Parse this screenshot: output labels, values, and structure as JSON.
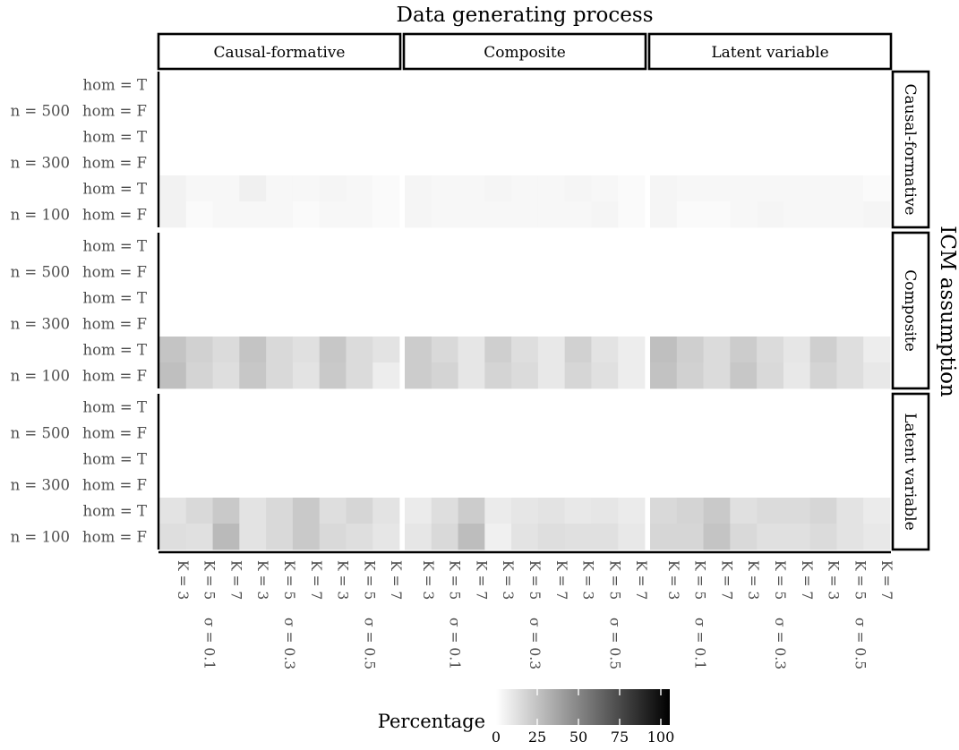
{
  "chart_data": {
    "type": "heatmap",
    "title": "Data generating process",
    "right_title": "ICM assumption",
    "columns": [
      "Causal-formative",
      "Composite",
      "Latent variable"
    ],
    "rows": [
      "Causal-formative",
      "Composite",
      "Latent variable"
    ],
    "y_labels": [
      {
        "n": "",
        "hom": "hom = T"
      },
      {
        "n": "n = 500",
        "hom": "hom = F"
      },
      {
        "n": "",
        "hom": "hom = T"
      },
      {
        "n": "n = 300",
        "hom": "hom = F"
      },
      {
        "n": "",
        "hom": "hom = T"
      },
      {
        "n": "n = 100",
        "hom": "hom = F"
      }
    ],
    "x_k_labels": [
      "K = 3",
      "K = 5",
      "K = 7",
      "K = 3",
      "K = 5",
      "K = 7",
      "K = 3",
      "K = 5",
      "K = 7"
    ],
    "x_sigma_labels": [
      "σ = 0.1",
      "σ = 0.3",
      "σ = 0.5"
    ],
    "legend": {
      "title": "Percentage",
      "ticks": [
        "0",
        "25",
        "50",
        "75",
        "100"
      ],
      "range": [
        0,
        100
      ],
      "low_color": "#ffffff",
      "high_color": "#000000"
    },
    "panels": [
      [
        [
          [
            0,
            0,
            0,
            0,
            0,
            0,
            0,
            0,
            0
          ],
          [
            0,
            0,
            0,
            0,
            0,
            0,
            0,
            0,
            0
          ],
          [
            0,
            0,
            0,
            0,
            0,
            0,
            0,
            0,
            0
          ],
          [
            0,
            0,
            0,
            0,
            0,
            0,
            0,
            0,
            0
          ],
          [
            5,
            3,
            3,
            6,
            3,
            3,
            4,
            3,
            2
          ],
          [
            5,
            2,
            3,
            3,
            3,
            2,
            3,
            3,
            2
          ]
        ],
        [
          [
            0,
            0,
            0,
            0,
            0,
            0,
            0,
            0,
            0
          ],
          [
            0,
            0,
            0,
            0,
            0,
            0,
            0,
            0,
            0
          ],
          [
            0,
            0,
            0,
            0,
            0,
            0,
            0,
            0,
            0
          ],
          [
            0,
            0,
            0,
            0,
            0,
            0,
            0,
            0,
            0
          ],
          [
            4,
            3,
            3,
            4,
            3,
            3,
            4,
            3,
            2
          ],
          [
            4,
            3,
            3,
            3,
            3,
            3,
            3,
            4,
            2
          ]
        ],
        [
          [
            0,
            0,
            0,
            0,
            0,
            0,
            0,
            0,
            0
          ],
          [
            0,
            0,
            0,
            0,
            0,
            0,
            0,
            0,
            0
          ],
          [
            0,
            0,
            0,
            0,
            0,
            0,
            0,
            0,
            0
          ],
          [
            0,
            0,
            0,
            0,
            0,
            0,
            0,
            0,
            0
          ],
          [
            4,
            3,
            3,
            3,
            3,
            3,
            3,
            3,
            2
          ],
          [
            4,
            2,
            2,
            3,
            4,
            3,
            3,
            3,
            4
          ]
        ]
      ],
      [
        [
          [
            0,
            0,
            0,
            0,
            0,
            0,
            0,
            0,
            0
          ],
          [
            0,
            0,
            0,
            0,
            0,
            0,
            0,
            0,
            0
          ],
          [
            0,
            0,
            0,
            0,
            0,
            0,
            0,
            0,
            0
          ],
          [
            0,
            0,
            0,
            0,
            0,
            0,
            0,
            0,
            0
          ],
          [
            23,
            18,
            14,
            23,
            15,
            12,
            22,
            14,
            11
          ],
          [
            25,
            17,
            13,
            22,
            15,
            11,
            21,
            14,
            7
          ]
        ],
        [
          [
            0,
            0,
            0,
            0,
            0,
            0,
            0,
            0,
            0
          ],
          [
            0,
            0,
            0,
            0,
            0,
            0,
            0,
            0,
            0
          ],
          [
            0,
            0,
            0,
            0,
            0,
            0,
            0,
            0,
            0
          ],
          [
            0,
            0,
            0,
            0,
            0,
            0,
            0,
            0,
            0
          ],
          [
            20,
            15,
            10,
            19,
            13,
            9,
            18,
            11,
            7
          ],
          [
            20,
            17,
            10,
            17,
            14,
            9,
            16,
            12,
            7
          ]
        ],
        [
          [
            0,
            0,
            0,
            0,
            0,
            0,
            0,
            0,
            0
          ],
          [
            0,
            0,
            0,
            0,
            0,
            0,
            0,
            0,
            0
          ],
          [
            0,
            0,
            0,
            0,
            0,
            0,
            0,
            0,
            0
          ],
          [
            0,
            0,
            0,
            0,
            0,
            0,
            0,
            0,
            0
          ],
          [
            25,
            19,
            14,
            20,
            14,
            10,
            19,
            13,
            7
          ],
          [
            24,
            18,
            14,
            22,
            15,
            9,
            17,
            13,
            9
          ]
        ]
      ],
      [
        [
          [
            0,
            0,
            0,
            0,
            0,
            0,
            0,
            0,
            0
          ],
          [
            0,
            0,
            0,
            0,
            0,
            0,
            0,
            0,
            0
          ],
          [
            0,
            0,
            0,
            0,
            0,
            0,
            0,
            0,
            0
          ],
          [
            0,
            0,
            0,
            0,
            0,
            0,
            0,
            0,
            0
          ],
          [
            11,
            15,
            21,
            11,
            15,
            21,
            13,
            16,
            11
          ],
          [
            13,
            12,
            27,
            11,
            15,
            21,
            15,
            13,
            10
          ]
        ],
        [
          [
            0,
            0,
            0,
            0,
            0,
            0,
            0,
            0,
            0
          ],
          [
            0,
            0,
            0,
            0,
            0,
            0,
            0,
            0,
            0
          ],
          [
            0,
            0,
            0,
            0,
            0,
            0,
            0,
            0,
            0
          ],
          [
            0,
            0,
            0,
            0,
            0,
            0,
            0,
            0,
            0
          ],
          [
            8,
            13,
            20,
            8,
            10,
            11,
            9,
            10,
            8
          ],
          [
            10,
            15,
            26,
            6,
            11,
            13,
            12,
            12,
            9
          ]
        ],
        [
          [
            0,
            0,
            0,
            0,
            0,
            0,
            0,
            0,
            0
          ],
          [
            0,
            0,
            0,
            0,
            0,
            0,
            0,
            0,
            0
          ],
          [
            0,
            0,
            0,
            0,
            0,
            0,
            0,
            0,
            0
          ],
          [
            0,
            0,
            0,
            0,
            0,
            0,
            0,
            0,
            0
          ],
          [
            15,
            17,
            21,
            12,
            14,
            14,
            16,
            11,
            8
          ],
          [
            16,
            16,
            23,
            15,
            12,
            12,
            14,
            11,
            9
          ]
        ]
      ]
    ]
  }
}
